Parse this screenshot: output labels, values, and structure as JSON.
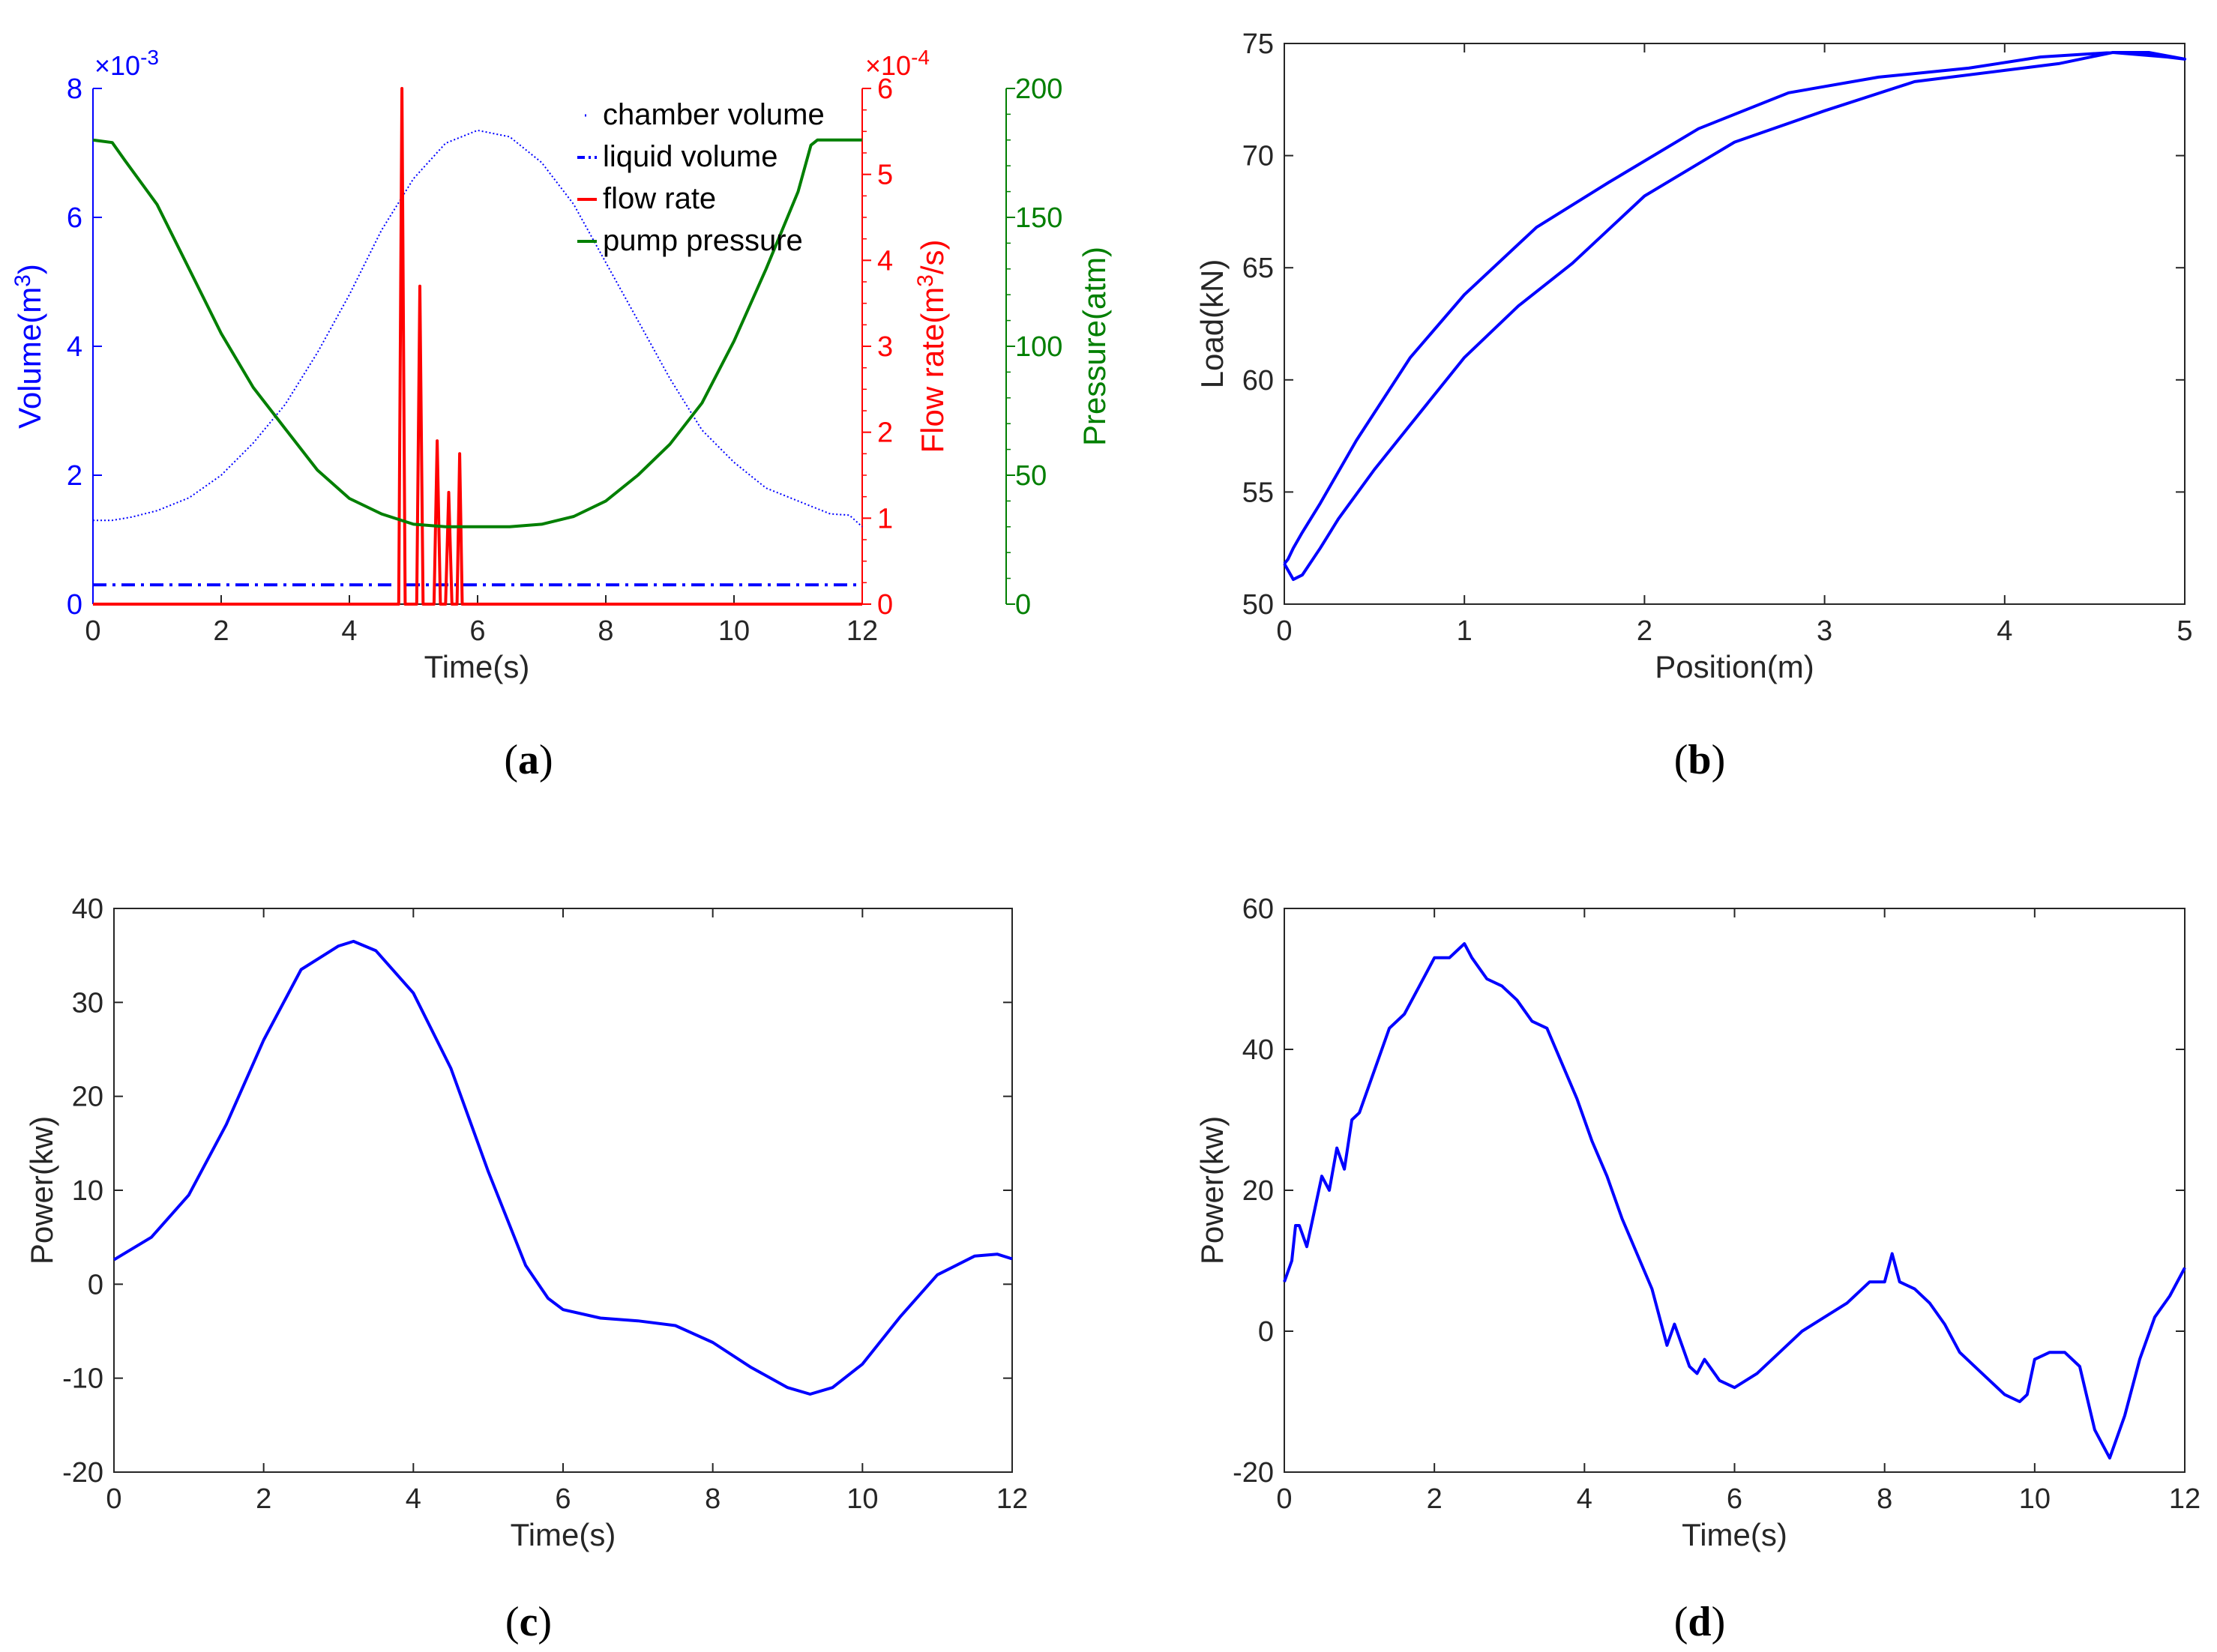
{
  "figure": {
    "captions": [
      {
        "open": "(",
        "letter": "a",
        "close": ")"
      },
      {
        "open": "(",
        "letter": "b",
        "close": ")"
      },
      {
        "open": "(",
        "letter": "c",
        "close": ")"
      },
      {
        "open": "(",
        "letter": "d",
        "close": ")"
      }
    ]
  },
  "chart_data": [
    {
      "id": "a",
      "type": "line",
      "xlabel": "Time(s)",
      "xlim": [
        0,
        12
      ],
      "xticks": [
        0,
        2,
        4,
        6,
        8,
        10,
        12
      ],
      "axes": {
        "volume": {
          "label": "Volume(m",
          "label_sup": "3",
          "label_close": ")",
          "ylim": [
            0,
            8
          ],
          "ticks": [
            0,
            2,
            4,
            6,
            8
          ],
          "multiplier": "×10",
          "multiplier_exp": "-3",
          "color": "#0000FF"
        },
        "flow": {
          "label": "Flow rate(m",
          "label_sup": "3",
          "label_close": "/s)",
          "ylim": [
            0,
            6
          ],
          "ticks": [
            0,
            1,
            2,
            3,
            4,
            5,
            6
          ],
          "multiplier": "×10",
          "multiplier_exp": "-4",
          "color": "#FF0000"
        },
        "pressure": {
          "label": "Pressure(atm)",
          "ylim": [
            0,
            200
          ],
          "ticks": [
            0,
            50,
            100,
            150,
            200
          ],
          "color": "#007F00"
        }
      },
      "legend_position": "top-right",
      "series": [
        {
          "name": "chamber volume",
          "axis": "volume",
          "style": "dotted",
          "color": "#0000FF",
          "x": [
            0,
            0.3,
            0.6,
            1,
            1.5,
            2,
            2.5,
            3,
            3.5,
            4,
            4.5,
            5,
            5.5,
            6,
            6.5,
            7,
            7.5,
            8,
            8.5,
            9,
            9.5,
            10,
            10.5,
            11,
            11.5,
            11.8,
            12
          ],
          "y": [
            1.3,
            1.3,
            1.35,
            1.45,
            1.65,
            2.0,
            2.5,
            3.1,
            3.9,
            4.8,
            5.8,
            6.6,
            7.15,
            7.35,
            7.25,
            6.85,
            6.2,
            5.3,
            4.4,
            3.5,
            2.7,
            2.2,
            1.8,
            1.6,
            1.4,
            1.38,
            1.2
          ]
        },
        {
          "name": "liquid volume",
          "axis": "volume",
          "style": "dashdot",
          "color": "#0000FF",
          "x": [
            0,
            12
          ],
          "y": [
            0.3,
            0.3
          ]
        },
        {
          "name": "flow rate",
          "axis": "flow",
          "style": "solid",
          "color": "#FF0000",
          "x": [
            0,
            4.77,
            4.82,
            4.87,
            5.05,
            5.1,
            5.15,
            5.32,
            5.37,
            5.42,
            5.5,
            5.55,
            5.6,
            5.68,
            5.72,
            5.76,
            12
          ],
          "y": [
            0,
            0,
            6.0,
            0,
            0,
            3.7,
            0,
            0,
            1.9,
            0,
            0,
            1.3,
            0,
            0,
            1.75,
            0,
            0
          ]
        },
        {
          "name": "pump pressure",
          "axis": "pressure",
          "style": "solid",
          "color": "#007F00",
          "x": [
            0,
            0.3,
            0.5,
            1,
            1.5,
            2,
            2.5,
            3,
            3.5,
            4,
            4.5,
            5,
            5.5,
            6,
            6.5,
            7,
            7.5,
            8,
            8.5,
            9,
            9.5,
            10,
            10.5,
            11,
            11.2,
            11.3,
            11.5,
            12
          ],
          "y": [
            180,
            179,
            172,
            155,
            130,
            105,
            84,
            68,
            52,
            41,
            35,
            31,
            30,
            30,
            30,
            31,
            34,
            40,
            50,
            62,
            78,
            102,
            130,
            160,
            178,
            180,
            180,
            180
          ]
        }
      ]
    },
    {
      "id": "b",
      "type": "line",
      "xlabel": "Position(m)",
      "ylabel": "Load(kN)",
      "xlim": [
        0,
        5
      ],
      "ylim": [
        50,
        75
      ],
      "xticks": [
        0,
        1,
        2,
        3,
        4,
        5
      ],
      "yticks": [
        50,
        55,
        60,
        65,
        70,
        75
      ],
      "series": [
        {
          "color": "#0000FF",
          "x": [
            0,
            0.05,
            0.1,
            0.2,
            0.3,
            0.5,
            0.7,
            1.0,
            1.3,
            1.6,
            2.0,
            2.5,
            3.0,
            3.5,
            4.0,
            4.3,
            4.6,
            4.8,
            5.0,
            4.9,
            4.6,
            4.2,
            3.8,
            3.3,
            2.8,
            2.3,
            1.8,
            1.4,
            1.0,
            0.7,
            0.4,
            0.2,
            0.1,
            0.05,
            0.02,
            0
          ],
          "y": [
            51.8,
            51.1,
            51.3,
            52.5,
            53.8,
            56.0,
            58.0,
            61.0,
            63.3,
            65.2,
            68.2,
            70.6,
            72.0,
            73.3,
            73.8,
            74.1,
            74.6,
            74.6,
            74.3,
            74.4,
            74.6,
            74.4,
            73.9,
            73.5,
            72.8,
            71.2,
            68.8,
            66.8,
            63.8,
            61.0,
            57.3,
            54.5,
            53.2,
            52.5,
            52.0,
            51.8
          ]
        }
      ]
    },
    {
      "id": "c",
      "type": "line",
      "xlabel": "Time(s)",
      "ylabel": "Power(kw)",
      "xlim": [
        0,
        12
      ],
      "ylim": [
        -20,
        40
      ],
      "xticks": [
        0,
        2,
        4,
        6,
        8,
        10,
        12
      ],
      "yticks": [
        -20,
        -10,
        0,
        10,
        20,
        30,
        40
      ],
      "series": [
        {
          "color": "#0000FF",
          "x": [
            0,
            0.5,
            1,
            1.5,
            2,
            2.5,
            3,
            3.2,
            3.5,
            4,
            4.5,
            5,
            5.5,
            5.8,
            6,
            6.5,
            7,
            7.5,
            8,
            8.5,
            9,
            9.3,
            9.6,
            10,
            10.5,
            11,
            11.5,
            11.8,
            12
          ],
          "y": [
            2.6,
            5,
            9.5,
            17,
            26,
            33.5,
            36,
            36.5,
            35.5,
            31,
            23,
            12,
            2,
            -1.5,
            -2.7,
            -3.6,
            -3.9,
            -4.4,
            -6.2,
            -8.8,
            -11,
            -11.7,
            -11,
            -8.5,
            -3.5,
            1,
            3,
            3.2,
            2.7
          ]
        }
      ]
    },
    {
      "id": "d",
      "type": "line",
      "xlabel": "Time(s)",
      "ylabel": "Power(kw)",
      "xlim": [
        0,
        12
      ],
      "ylim": [
        -20,
        60
      ],
      "xticks": [
        0,
        2,
        4,
        6,
        8,
        10,
        12
      ],
      "yticks": [
        -20,
        0,
        20,
        40,
        60
      ],
      "series": [
        {
          "color": "#0000FF",
          "x": [
            0,
            0.1,
            0.15,
            0.2,
            0.3,
            0.4,
            0.5,
            0.6,
            0.7,
            0.8,
            0.9,
            1.0,
            1.2,
            1.4,
            1.6,
            1.8,
            2.0,
            2.2,
            2.4,
            2.5,
            2.7,
            2.9,
            3.1,
            3.3,
            3.5,
            3.7,
            3.9,
            4.1,
            4.3,
            4.5,
            4.7,
            4.9,
            5.1,
            5.2,
            5.3,
            5.4,
            5.5,
            5.6,
            5.8,
            6.0,
            6.3,
            6.6,
            6.9,
            7.2,
            7.5,
            7.8,
            8.0,
            8.1,
            8.2,
            8.4,
            8.6,
            8.8,
            9.0,
            9.3,
            9.6,
            9.8,
            9.9,
            10.0,
            10.2,
            10.4,
            10.6,
            10.8,
            10.9,
            11.0,
            11.2,
            11.4,
            11.6,
            11.8,
            12.0
          ],
          "y": [
            7,
            10,
            15,
            15,
            12,
            17,
            22,
            20,
            26,
            23,
            30,
            31,
            37,
            43,
            45,
            49,
            53,
            53,
            55,
            53,
            50,
            49,
            47,
            44,
            43,
            38,
            33,
            27,
            22,
            16,
            11,
            6,
            -2,
            1,
            -2,
            -5,
            -6,
            -4,
            -7,
            -8,
            -6,
            -3,
            0,
            2,
            4,
            7,
            7,
            11,
            7,
            6,
            4,
            1,
            -3,
            -6,
            -9,
            -10,
            -9,
            -4,
            -3,
            -3,
            -5,
            -14,
            -16,
            -18,
            -12,
            -4,
            2,
            5,
            9
          ]
        }
      ]
    }
  ]
}
